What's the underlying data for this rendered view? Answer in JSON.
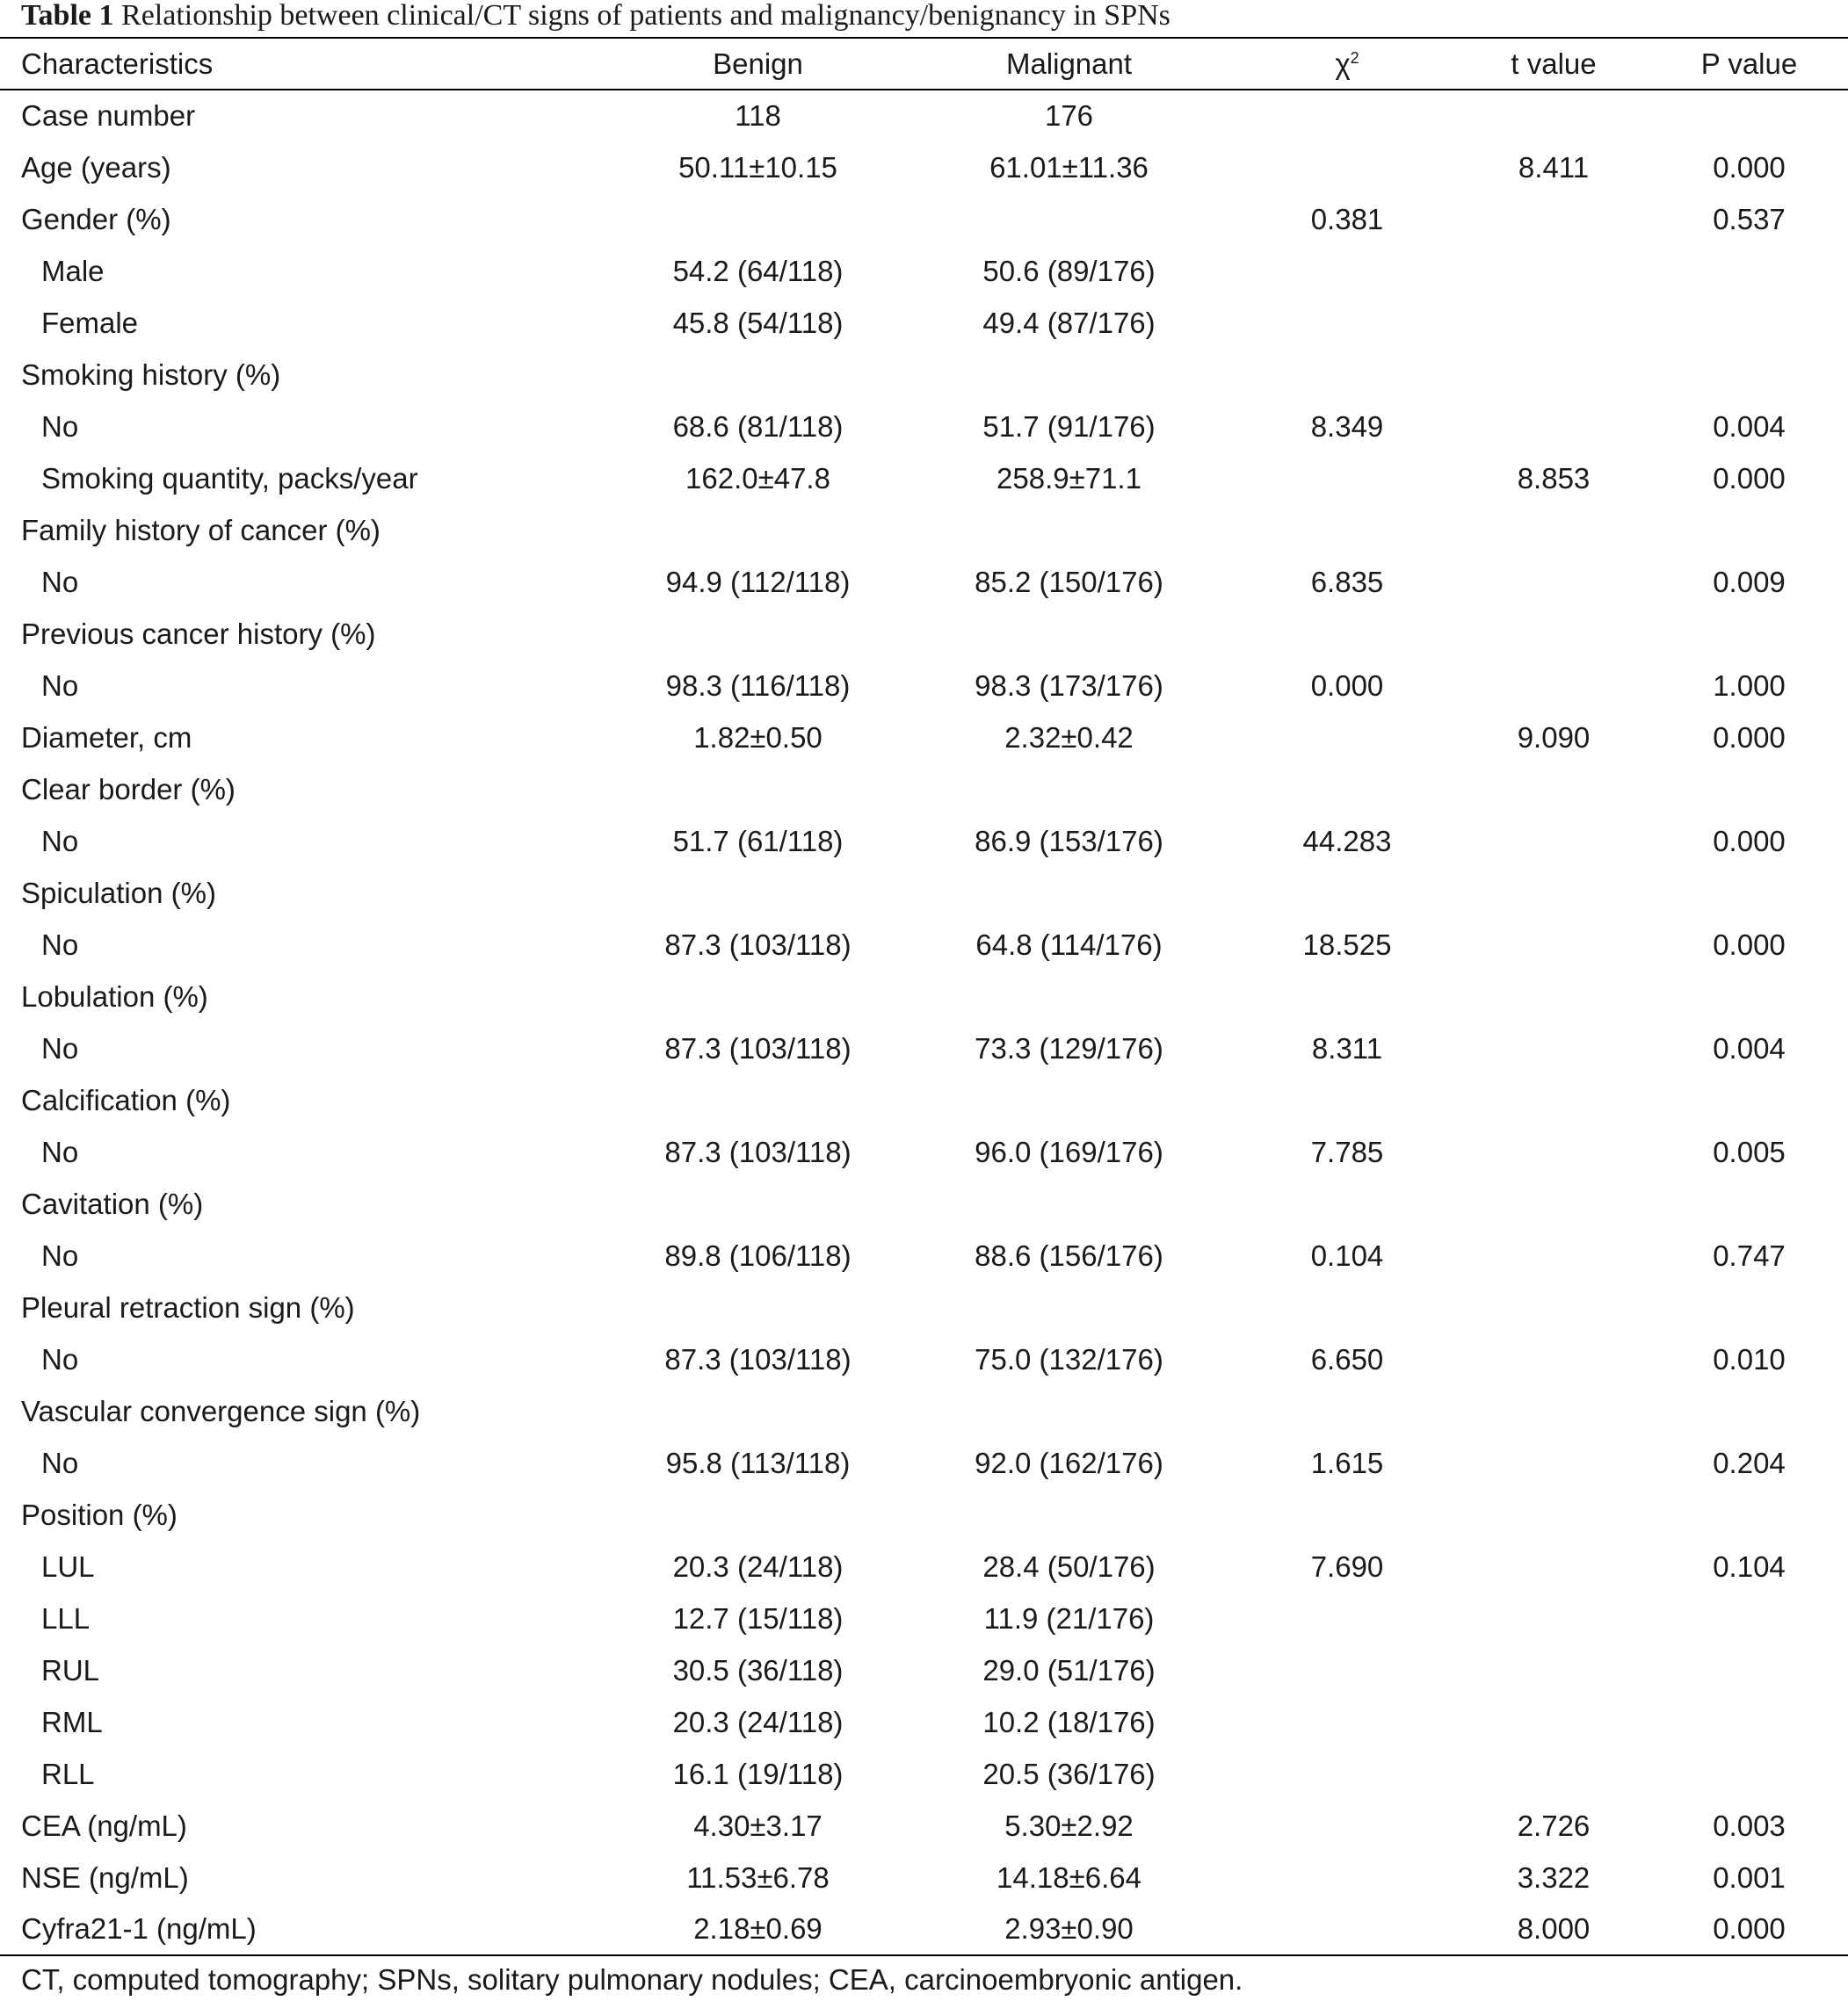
{
  "caption": {
    "label": "Table 1",
    "text": "Relationship between clinical/CT signs of patients and malignancy/benignancy in SPNs"
  },
  "headers": {
    "characteristics": "Characteristics",
    "benign": "Benign",
    "malignant": "Malignant",
    "chi": "χ",
    "chi_sup": "2",
    "t": "t value",
    "p": "P value"
  },
  "rows": [
    {
      "name": "Case number",
      "sub": false,
      "benign": "118",
      "malignant": "176",
      "chi": "",
      "t": "",
      "p": ""
    },
    {
      "name": "Age (years)",
      "sub": false,
      "benign": "50.11±10.15",
      "malignant": "61.01±11.36",
      "chi": "",
      "t": "8.411",
      "p": "0.000"
    },
    {
      "name": "Gender (%)",
      "sub": false,
      "benign": "",
      "malignant": "",
      "chi": "0.381",
      "t": "",
      "p": "0.537"
    },
    {
      "name": "Male",
      "sub": true,
      "benign": "54.2 (64/118)",
      "malignant": "50.6 (89/176)",
      "chi": "",
      "t": "",
      "p": ""
    },
    {
      "name": "Female",
      "sub": true,
      "benign": "45.8 (54/118)",
      "malignant": "49.4 (87/176)",
      "chi": "",
      "t": "",
      "p": ""
    },
    {
      "name": "Smoking history (%)",
      "sub": false,
      "benign": "",
      "malignant": "",
      "chi": "",
      "t": "",
      "p": ""
    },
    {
      "name": "No",
      "sub": true,
      "benign": "68.6 (81/118)",
      "malignant": "51.7 (91/176)",
      "chi": "8.349",
      "t": "",
      "p": "0.004"
    },
    {
      "name": "Smoking quantity, packs/year",
      "sub": true,
      "benign": "162.0±47.8",
      "malignant": "258.9±71.1",
      "chi": "",
      "t": "8.853",
      "p": "0.000"
    },
    {
      "name": "Family history of cancer (%)",
      "sub": false,
      "benign": "",
      "malignant": "",
      "chi": "",
      "t": "",
      "p": ""
    },
    {
      "name": "No",
      "sub": true,
      "benign": "94.9 (112/118)",
      "malignant": "85.2 (150/176)",
      "chi": "6.835",
      "t": "",
      "p": "0.009"
    },
    {
      "name": "Previous cancer history (%)",
      "sub": false,
      "benign": "",
      "malignant": "",
      "chi": "",
      "t": "",
      "p": ""
    },
    {
      "name": "No",
      "sub": true,
      "benign": "98.3 (116/118)",
      "malignant": "98.3 (173/176)",
      "chi": "0.000",
      "t": "",
      "p": "1.000"
    },
    {
      "name": "Diameter, cm",
      "sub": false,
      "benign": "1.82±0.50",
      "malignant": "2.32±0.42",
      "chi": "",
      "t": "9.090",
      "p": "0.000"
    },
    {
      "name": "Clear border (%)",
      "sub": false,
      "benign": "",
      "malignant": "",
      "chi": "",
      "t": "",
      "p": ""
    },
    {
      "name": "No",
      "sub": true,
      "benign": "51.7 (61/118)",
      "malignant": "86.9 (153/176)",
      "chi": "44.283",
      "t": "",
      "p": "0.000"
    },
    {
      "name": "Spiculation (%)",
      "sub": false,
      "benign": "",
      "malignant": "",
      "chi": "",
      "t": "",
      "p": ""
    },
    {
      "name": "No",
      "sub": true,
      "benign": "87.3 (103/118)",
      "malignant": "64.8 (114/176)",
      "chi": "18.525",
      "t": "",
      "p": "0.000"
    },
    {
      "name": "Lobulation (%)",
      "sub": false,
      "benign": "",
      "malignant": "",
      "chi": "",
      "t": "",
      "p": ""
    },
    {
      "name": "No",
      "sub": true,
      "benign": "87.3 (103/118)",
      "malignant": "73.3 (129/176)",
      "chi": "8.311",
      "t": "",
      "p": "0.004"
    },
    {
      "name": "Calcification (%)",
      "sub": false,
      "benign": "",
      "malignant": "",
      "chi": "",
      "t": "",
      "p": ""
    },
    {
      "name": "No",
      "sub": true,
      "benign": "87.3 (103/118)",
      "malignant": "96.0 (169/176)",
      "chi": "7.785",
      "t": "",
      "p": "0.005"
    },
    {
      "name": "Cavitation (%)",
      "sub": false,
      "benign": "",
      "malignant": "",
      "chi": "",
      "t": "",
      "p": ""
    },
    {
      "name": "No",
      "sub": true,
      "benign": "89.8 (106/118)",
      "malignant": "88.6 (156/176)",
      "chi": "0.104",
      "t": "",
      "p": "0.747"
    },
    {
      "name": "Pleural retraction sign (%)",
      "sub": false,
      "benign": "",
      "malignant": "",
      "chi": "",
      "t": "",
      "p": ""
    },
    {
      "name": "No",
      "sub": true,
      "benign": "87.3 (103/118)",
      "malignant": "75.0 (132/176)",
      "chi": "6.650",
      "t": "",
      "p": "0.010"
    },
    {
      "name": "Vascular convergence sign (%)",
      "sub": false,
      "benign": "",
      "malignant": "",
      "chi": "",
      "t": "",
      "p": ""
    },
    {
      "name": "No",
      "sub": true,
      "benign": "95.8 (113/118)",
      "malignant": "92.0 (162/176)",
      "chi": "1.615",
      "t": "",
      "p": "0.204"
    },
    {
      "name": "Position (%)",
      "sub": false,
      "benign": "",
      "malignant": "",
      "chi": "",
      "t": "",
      "p": ""
    },
    {
      "name": "LUL",
      "sub": true,
      "benign": "20.3 (24/118)",
      "malignant": "28.4 (50/176)",
      "chi": "7.690",
      "t": "",
      "p": "0.104"
    },
    {
      "name": "LLL",
      "sub": true,
      "benign": "12.7 (15/118)",
      "malignant": "11.9 (21/176)",
      "chi": "",
      "t": "",
      "p": ""
    },
    {
      "name": "RUL",
      "sub": true,
      "benign": "30.5 (36/118)",
      "malignant": "29.0 (51/176)",
      "chi": "",
      "t": "",
      "p": ""
    },
    {
      "name": "RML",
      "sub": true,
      "benign": "20.3 (24/118)",
      "malignant": "10.2 (18/176)",
      "chi": "",
      "t": "",
      "p": ""
    },
    {
      "name": "RLL",
      "sub": true,
      "benign": "16.1 (19/118)",
      "malignant": "20.5 (36/176)",
      "chi": "",
      "t": "",
      "p": ""
    },
    {
      "name": "CEA (ng/mL)",
      "sub": false,
      "benign": "4.30±3.17",
      "malignant": "5.30±2.92",
      "chi": "",
      "t": "2.726",
      "p": "0.003"
    },
    {
      "name": "NSE (ng/mL)",
      "sub": false,
      "benign": "11.53±6.78",
      "malignant": "14.18±6.64",
      "chi": "",
      "t": "3.322",
      "p": "0.001"
    },
    {
      "name": "Cyfra21-1 (ng/mL)",
      "sub": false,
      "benign": "2.18±0.69",
      "malignant": "2.93±0.90",
      "chi": "",
      "t": "8.000",
      "p": "0.000"
    }
  ],
  "footnote": "CT, computed tomography; SPNs, solitary pulmonary nodules; CEA, carcinoembryonic antigen."
}
